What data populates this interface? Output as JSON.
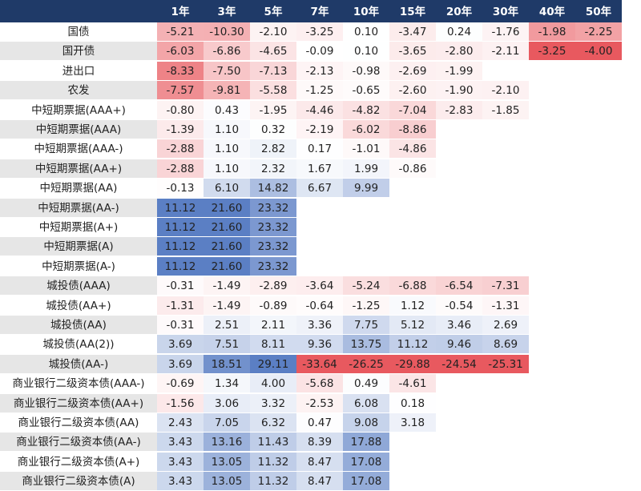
{
  "chart_data": {
    "type": "heatmap",
    "columns": [
      "1年",
      "3年",
      "5年",
      "7年",
      "10年",
      "15年",
      "20年",
      "30年",
      "40年",
      "50年"
    ],
    "rows": [
      {
        "label": "国债",
        "values": [
          -5.21,
          -10.3,
          -2.1,
          -3.25,
          0.1,
          -3.47,
          0.24,
          -1.76,
          -1.98,
          -2.25
        ]
      },
      {
        "label": "国开债",
        "values": [
          -6.03,
          -6.86,
          -4.65,
          -0.09,
          0.1,
          -3.65,
          -2.8,
          -2.11,
          -3.25,
          -4.0
        ]
      },
      {
        "label": "进出口",
        "values": [
          -8.33,
          -7.5,
          -7.13,
          -2.13,
          -0.98,
          -2.69,
          -1.99,
          null,
          null,
          null
        ]
      },
      {
        "label": "农发",
        "values": [
          -7.57,
          -9.81,
          -5.58,
          -1.25,
          -0.65,
          -2.6,
          -1.9,
          -2.1,
          null,
          null
        ]
      },
      {
        "label": "中短期票据(AAA+)",
        "values": [
          -0.8,
          0.43,
          -1.95,
          -4.46,
          -4.82,
          -7.04,
          -2.83,
          -1.85,
          null,
          null
        ]
      },
      {
        "label": "中短期票据(AAA)",
        "values": [
          -1.39,
          1.1,
          0.32,
          -2.19,
          -6.02,
          -8.86,
          null,
          null,
          null,
          null
        ]
      },
      {
        "label": "中短期票据(AAA-)",
        "values": [
          -2.88,
          1.1,
          2.82,
          0.17,
          -1.01,
          -4.86,
          null,
          null,
          null,
          null
        ]
      },
      {
        "label": "中短期票据(AA+)",
        "values": [
          -2.88,
          1.1,
          2.32,
          1.67,
          1.99,
          -0.86,
          null,
          null,
          null,
          null
        ]
      },
      {
        "label": "中短期票据(AA)",
        "values": [
          -0.13,
          6.1,
          14.82,
          6.67,
          9.99,
          null,
          null,
          null,
          null,
          null
        ]
      },
      {
        "label": "中短期票据(AA-)",
        "values": [
          11.12,
          21.6,
          23.32,
          null,
          null,
          null,
          null,
          null,
          null,
          null
        ]
      },
      {
        "label": "中短期票据(A+)",
        "values": [
          11.12,
          21.6,
          23.32,
          null,
          null,
          null,
          null,
          null,
          null,
          null
        ]
      },
      {
        "label": "中短期票据(A)",
        "values": [
          11.12,
          21.6,
          23.32,
          null,
          null,
          null,
          null,
          null,
          null,
          null
        ]
      },
      {
        "label": "中短期票据(A-)",
        "values": [
          11.12,
          21.6,
          23.32,
          null,
          null,
          null,
          null,
          null,
          null,
          null
        ]
      },
      {
        "label": "城投债(AAA)",
        "values": [
          -0.31,
          -1.49,
          -2.89,
          -3.64,
          -5.24,
          -6.88,
          -6.54,
          -7.31,
          null,
          null
        ]
      },
      {
        "label": "城投债(AA+)",
        "values": [
          -1.31,
          -1.49,
          -0.89,
          -0.64,
          -1.25,
          1.12,
          -0.54,
          -1.31,
          null,
          null
        ]
      },
      {
        "label": "城投债(AA)",
        "values": [
          -0.31,
          2.51,
          2.11,
          3.36,
          7.75,
          5.12,
          3.46,
          2.69,
          null,
          null
        ]
      },
      {
        "label": "城投债(AA(2))",
        "values": [
          3.69,
          7.51,
          8.11,
          9.36,
          13.75,
          11.12,
          9.46,
          8.69,
          null,
          null
        ]
      },
      {
        "label": "城投债(AA-)",
        "values": [
          3.69,
          18.51,
          29.11,
          -33.64,
          -26.25,
          -29.88,
          -24.54,
          -25.31,
          null,
          null
        ]
      },
      {
        "label": "商业银行二级资本债(AAA-)",
        "values": [
          -0.69,
          1.34,
          4.0,
          -5.68,
          0.49,
          -4.61,
          null,
          null,
          null,
          null
        ]
      },
      {
        "label": "商业银行二级资本债(AA+)",
        "values": [
          -1.56,
          3.06,
          3.32,
          -2.53,
          6.08,
          0.18,
          null,
          null,
          null,
          null
        ]
      },
      {
        "label": "商业银行二级资本债(AA)",
        "values": [
          2.43,
          7.05,
          6.32,
          0.47,
          9.08,
          3.18,
          null,
          null,
          null,
          null
        ]
      },
      {
        "label": "商业银行二级资本债(AA-)",
        "values": [
          3.43,
          13.16,
          11.43,
          8.39,
          17.88,
          null,
          null,
          null,
          null,
          null
        ]
      },
      {
        "label": "商业银行二级资本债(A+)",
        "values": [
          3.43,
          13.05,
          11.32,
          8.47,
          17.08,
          null,
          null,
          null,
          null,
          null
        ]
      },
      {
        "label": "商业银行二级资本债(A)",
        "values": [
          3.43,
          13.05,
          11.32,
          8.47,
          17.08,
          null,
          null,
          null,
          null,
          null
        ]
      }
    ],
    "color_scale": {
      "negative": "#e8595f",
      "zero": "#ffffff",
      "positive": "#5b7fc4"
    },
    "header_color": "#1f3a68"
  }
}
